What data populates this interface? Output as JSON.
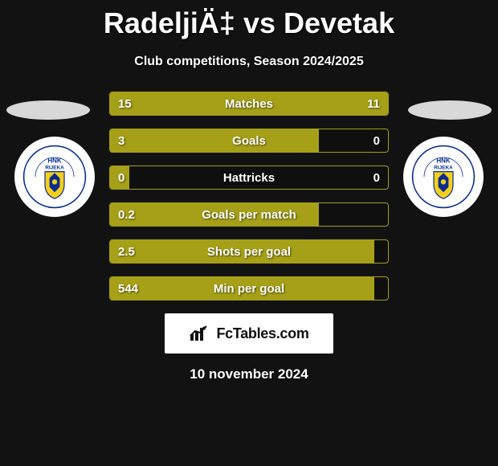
{
  "header": {
    "title": "RadeljiÄ‡ vs Devetak",
    "subtitle": "Club competitions, Season 2024/2025"
  },
  "colors": {
    "bar": "#a6a018",
    "border": "#a6a018",
    "background": "#121212",
    "text": "#ffffff",
    "ellipse": "#d8d8d8",
    "brand_bg": "#ffffff",
    "brand_text": "#111111"
  },
  "club": {
    "name": "HNK RIJEKA",
    "badge_bg": "#ffffff",
    "badge_ring": "#0a2d8c",
    "badge_crest_fill": "#f4cf1e",
    "badge_crest_accent": "#0a2d8c",
    "text_color": "#0a2d8c"
  },
  "stats": [
    {
      "label": "Matches",
      "left_val": "15",
      "right_val": "11",
      "left_pct": 58,
      "right_pct": 42
    },
    {
      "label": "Goals",
      "left_val": "3",
      "right_val": "0",
      "left_pct": 75,
      "right_pct": 0
    },
    {
      "label": "Hattricks",
      "left_val": "0",
      "right_val": "0",
      "left_pct": 7,
      "right_pct": 0
    },
    {
      "label": "Goals per match",
      "left_val": "0.2",
      "right_val": "",
      "left_pct": 75,
      "right_pct": 0
    },
    {
      "label": "Shots per goal",
      "left_val": "2.5",
      "right_val": "",
      "left_pct": 95,
      "right_pct": 0
    },
    {
      "label": "Min per goal",
      "left_val": "544",
      "right_val": "",
      "left_pct": 95,
      "right_pct": 0
    }
  ],
  "brand": {
    "text": "FcTables.com"
  },
  "date": "10 november 2024",
  "typography": {
    "title_fontsize": 36,
    "subtitle_fontsize": 16,
    "stat_fontsize": 15,
    "brand_fontsize": 18,
    "date_fontsize": 17
  }
}
